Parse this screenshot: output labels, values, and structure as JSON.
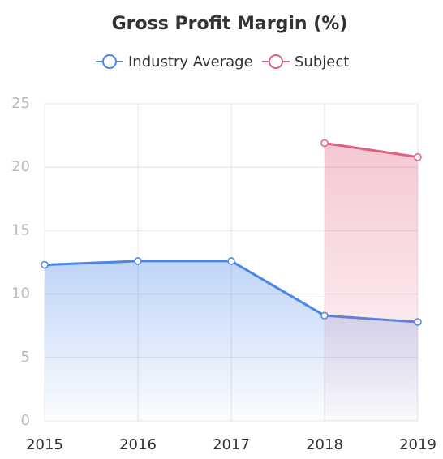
{
  "chart_data": {
    "type": "line",
    "title": "Gross Profit Margin (%)",
    "categories": [
      "2015",
      "2016",
      "2017",
      "2018",
      "2019"
    ],
    "series": [
      {
        "name": "Industry Average",
        "color": "#4a86e8",
        "values": [
          12.3,
          12.6,
          12.6,
          8.3,
          7.8
        ]
      },
      {
        "name": "Subject",
        "color": "#e0607e",
        "values": [
          null,
          null,
          null,
          21.9,
          20.8
        ]
      }
    ],
    "ylim": [
      0,
      25
    ],
    "yticks": [
      0,
      5,
      10,
      15,
      20,
      25
    ],
    "grid": true,
    "area": true,
    "legend": "top"
  }
}
